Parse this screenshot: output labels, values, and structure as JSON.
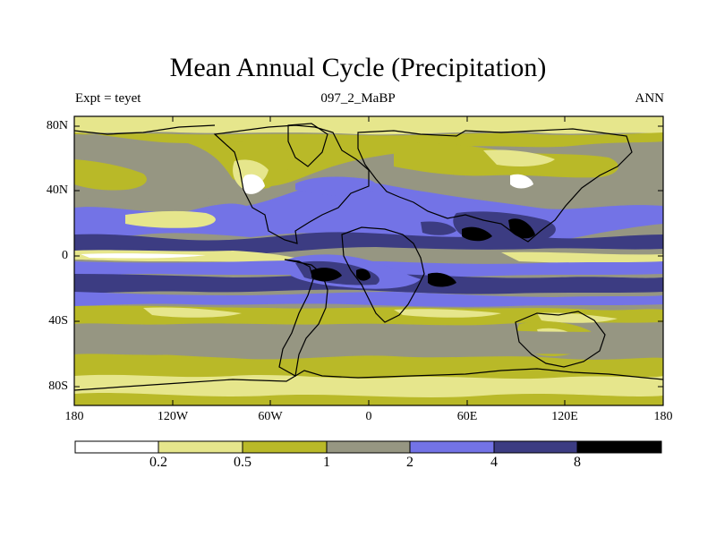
{
  "title": "Mean Annual Cycle (Precipitation)",
  "experiment": "Expt = teyet",
  "run": "097_2_MaBP",
  "season": "ANN",
  "lat_ticks": [
    "80N",
    "40N",
    "0",
    "40S",
    "80S"
  ],
  "lon_ticks": [
    "180",
    "120W",
    "60W",
    "0",
    "60E",
    "120E",
    "180"
  ],
  "colorbar": {
    "levels": [
      "0.2",
      "0.5",
      "1",
      "2",
      "4",
      "8"
    ],
    "colors": [
      "#ffffff",
      "#e6e68c",
      "#b9b928",
      "#969682",
      "#7373e6",
      "#3c3c82",
      "#000000"
    ]
  },
  "chart_data": {
    "type": "heatmap",
    "title": "Mean Annual Cycle (Precipitation)",
    "x_range": [
      -180,
      180
    ],
    "y_range": [
      -90,
      90
    ],
    "xticks": [
      -180,
      -120,
      -60,
      0,
      60,
      120,
      180
    ],
    "yticks": [
      80,
      40,
      0,
      -40,
      -80
    ],
    "contour_levels": [
      0.2,
      0.5,
      1,
      2,
      4,
      8
    ]
  }
}
